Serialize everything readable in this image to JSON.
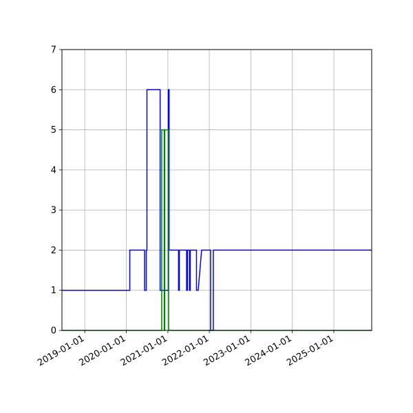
{
  "chart_data": {
    "type": "line",
    "title": "",
    "xlabel": "",
    "ylabel": "",
    "xlim": [
      "2018-06-14",
      "2025-11-30"
    ],
    "ylim": [
      0,
      7
    ],
    "grid": true,
    "x_ticks": [
      "2019-01-01",
      "2020-01-01",
      "2021-01-01",
      "2022-01-01",
      "2023-01-01",
      "2024-01-01",
      "2025-01-01"
    ],
    "y_ticks": [
      0,
      1,
      2,
      3,
      4,
      5,
      6,
      7
    ],
    "series": [
      {
        "color": "#0000ff",
        "points": [
          [
            "2018-06-14",
            1
          ],
          [
            "2020-02-01",
            1
          ],
          [
            "2020-02-01",
            2
          ],
          [
            "2020-06-10",
            2
          ],
          [
            "2020-06-10",
            1
          ],
          [
            "2020-06-25",
            1
          ],
          [
            "2020-06-25",
            2
          ],
          [
            "2020-07-01",
            2
          ],
          [
            "2020-07-01",
            6
          ],
          [
            "2020-10-25",
            6
          ],
          [
            "2020-10-25",
            1
          ],
          [
            "2021-01-05",
            1
          ],
          [
            "2021-01-05",
            6
          ],
          [
            "2021-01-12",
            6
          ],
          [
            "2021-01-12",
            2
          ],
          [
            "2021-04-05",
            2
          ],
          [
            "2021-04-05",
            1
          ],
          [
            "2021-04-12",
            1
          ],
          [
            "2021-04-12",
            2
          ],
          [
            "2021-06-15",
            2
          ],
          [
            "2021-06-15",
            1
          ],
          [
            "2021-06-22",
            1
          ],
          [
            "2021-06-22",
            2
          ],
          [
            "2021-07-10",
            2
          ],
          [
            "2021-07-10",
            1
          ],
          [
            "2021-07-17",
            1
          ],
          [
            "2021-07-17",
            2
          ],
          [
            "2021-09-10",
            2
          ],
          [
            "2021-09-10",
            1
          ],
          [
            "2021-09-25",
            1
          ],
          [
            "2021-10-25",
            2
          ],
          [
            "2022-01-12",
            2
          ],
          [
            "2022-01-12",
            0
          ],
          [
            "2022-02-05",
            0
          ],
          [
            "2022-02-05",
            2
          ],
          [
            "2025-11-30",
            2
          ]
        ]
      },
      {
        "color": "#008000",
        "points": [
          [
            "2018-06-14",
            0
          ],
          [
            "2020-11-08",
            0
          ],
          [
            "2020-11-08",
            5
          ],
          [
            "2020-11-30",
            5
          ],
          [
            "2020-11-30",
            0
          ],
          [
            "2020-12-05",
            0
          ],
          [
            "2020-12-05",
            5
          ],
          [
            "2021-01-08",
            5
          ],
          [
            "2021-01-08",
            0
          ],
          [
            "2025-11-30",
            0
          ]
        ]
      }
    ]
  }
}
